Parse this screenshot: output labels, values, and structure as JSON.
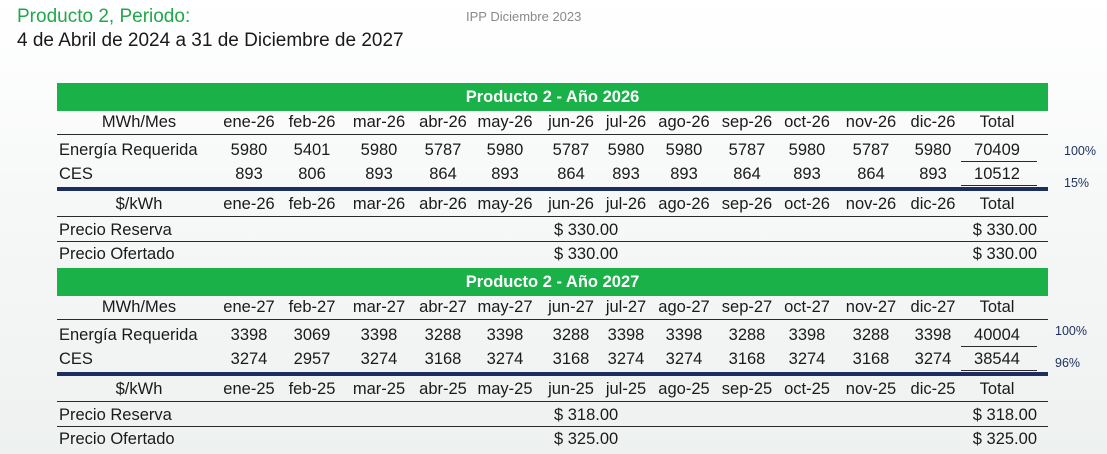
{
  "header": {
    "title": "Producto 2, Periodo:",
    "subtitle": "4 de Abril de 2024 a 31 de Diciembre de 2027",
    "ipp_label": "IPP Diciembre 2023"
  },
  "colors": {
    "band": "#19b148",
    "title_green": "#21a84a",
    "divider_blue": "#1c2e5e"
  },
  "year2026": {
    "band": "Producto 2 - Año 2026",
    "energy_header": "MWh/Mes",
    "months": [
      "ene-26",
      "feb-26",
      "mar-26",
      "abr-26",
      "may-26",
      "jun-26",
      "jul-26",
      "ago-26",
      "sep-26",
      "oct-26",
      "nov-26",
      "dic-26"
    ],
    "total_label": "Total",
    "energia": {
      "label": "Energía Requerida",
      "values": [
        "5980",
        "5401",
        "5980",
        "5787",
        "5980",
        "5787",
        "5980",
        "5980",
        "5787",
        "5980",
        "5787",
        "5980"
      ],
      "total": "70409",
      "pct": "100%"
    },
    "ces": {
      "label": "CES",
      "values": [
        "893",
        "806",
        "893",
        "864",
        "893",
        "864",
        "893",
        "893",
        "864",
        "893",
        "864",
        "893"
      ],
      "total": "10512",
      "pct": "15%"
    },
    "price_header": "$/kWh",
    "price_months": [
      "ene-26",
      "feb-26",
      "mar-26",
      "abr-26",
      "may-26",
      "jun-26",
      "jul-26",
      "ago-26",
      "sep-26",
      "oct-26",
      "nov-26",
      "dic-26"
    ],
    "price_total_label": "Total",
    "precio_reserva": {
      "label": "Precio Reserva",
      "value": "$ 330.00",
      "total": "$ 330.00"
    },
    "precio_ofertado": {
      "label": "Precio Ofertado",
      "value": "$ 330.00",
      "total": "$ 330.00"
    }
  },
  "year2027": {
    "band": "Producto 2 - Año 2027",
    "energy_header": "MWh/Mes",
    "months": [
      "ene-27",
      "feb-27",
      "mar-27",
      "abr-27",
      "may-27",
      "jun-27",
      "jul-27",
      "ago-27",
      "sep-27",
      "oct-27",
      "nov-27",
      "dic-27"
    ],
    "total_label": "Total",
    "energia": {
      "label": "Energía Requerida",
      "values": [
        "3398",
        "3069",
        "3398",
        "3288",
        "3398",
        "3288",
        "3398",
        "3398",
        "3288",
        "3398",
        "3288",
        "3398"
      ],
      "total": "40004",
      "pct": "100%"
    },
    "ces": {
      "label": "CES",
      "values": [
        "3274",
        "2957",
        "3274",
        "3168",
        "3274",
        "3168",
        "3274",
        "3274",
        "3168",
        "3274",
        "3168",
        "3274"
      ],
      "total": "38544",
      "pct": "96%"
    },
    "price_header": "$/kWh",
    "price_months": [
      "ene-25",
      "feb-25",
      "mar-25",
      "abr-25",
      "may-25",
      "jun-25",
      "jul-25",
      "ago-25",
      "sep-25",
      "oct-25",
      "nov-25",
      "dic-25"
    ],
    "price_total_label": "Total",
    "precio_reserva": {
      "label": "Precio Reserva",
      "value": "$ 318.00",
      "total": "$ 318.00"
    },
    "precio_ofertado": {
      "label": "Precio Ofertado",
      "value": "$ 325.00",
      "total": "$ 325.00"
    }
  }
}
